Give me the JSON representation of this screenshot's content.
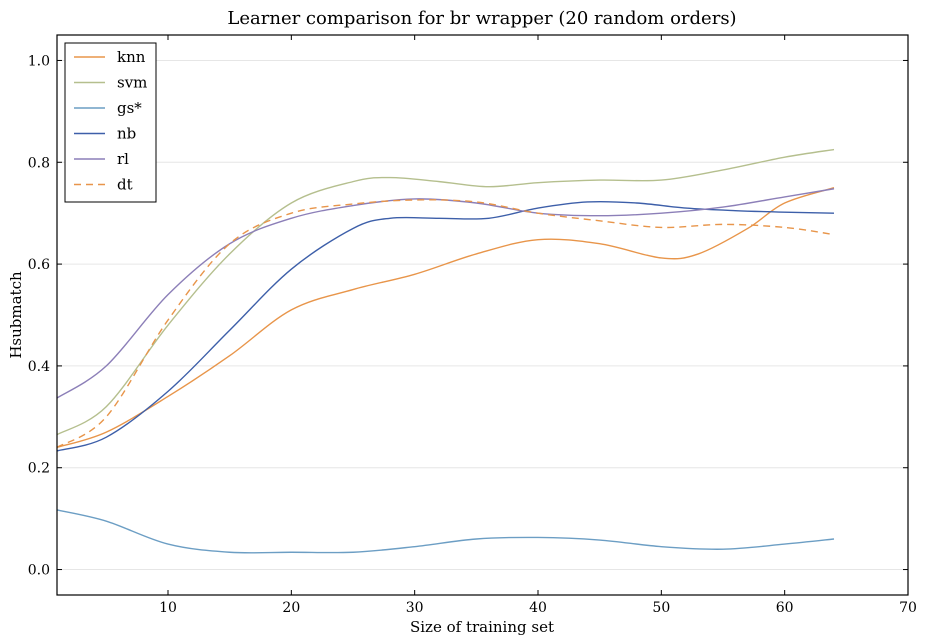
{
  "chart_data": {
    "type": "line",
    "title": "Learner comparison for br wrapper (20 random orders)",
    "xlabel": "Size of training set",
    "ylabel": "Hsubmatch",
    "xlim": [
      1,
      70
    ],
    "ylim": [
      -0.05,
      1.05
    ],
    "xticks": [
      10,
      20,
      30,
      40,
      50,
      60,
      70
    ],
    "yticks": [
      0.0,
      0.2,
      0.4,
      0.6,
      0.8,
      1.0
    ],
    "grid": "horizontal",
    "legend_position": "top-left",
    "series": [
      {
        "name": "knn",
        "color": "#e8954a",
        "dash": false,
        "x": [
          1,
          5,
          10,
          15,
          20,
          25,
          30,
          35,
          40,
          45,
          50,
          53,
          57,
          60,
          64
        ],
        "y": [
          0.24,
          0.27,
          0.34,
          0.42,
          0.51,
          0.55,
          0.58,
          0.62,
          0.648,
          0.64,
          0.612,
          0.62,
          0.67,
          0.72,
          0.75
        ]
      },
      {
        "name": "svm",
        "color": "#b5bf8e",
        "dash": false,
        "x": [
          1,
          5,
          10,
          15,
          20,
          25,
          28,
          32,
          36,
          40,
          45,
          50,
          55,
          60,
          64
        ],
        "y": [
          0.265,
          0.32,
          0.48,
          0.62,
          0.72,
          0.762,
          0.77,
          0.762,
          0.752,
          0.76,
          0.765,
          0.765,
          0.785,
          0.81,
          0.825
        ]
      },
      {
        "name": "gs*",
        "color": "#6c9ec4",
        "dash": false,
        "x": [
          1,
          5,
          10,
          15,
          20,
          25,
          30,
          35,
          40,
          45,
          50,
          55,
          60,
          64
        ],
        "y": [
          0.117,
          0.095,
          0.05,
          0.034,
          0.034,
          0.034,
          0.045,
          0.06,
          0.063,
          0.058,
          0.045,
          0.04,
          0.05,
          0.06
        ]
      },
      {
        "name": "nb",
        "color": "#3d5fa9",
        "dash": false,
        "x": [
          1,
          5,
          10,
          15,
          20,
          25,
          28,
          32,
          36,
          40,
          44,
          48,
          52,
          56,
          60,
          64
        ],
        "y": [
          0.233,
          0.26,
          0.35,
          0.47,
          0.59,
          0.67,
          0.69,
          0.69,
          0.69,
          0.71,
          0.722,
          0.72,
          0.71,
          0.705,
          0.702,
          0.7
        ]
      },
      {
        "name": "rl",
        "color": "#8c7fb8",
        "dash": false,
        "x": [
          1,
          5,
          10,
          15,
          20,
          25,
          30,
          35,
          40,
          45,
          50,
          55,
          60,
          64
        ],
        "y": [
          0.337,
          0.4,
          0.54,
          0.64,
          0.69,
          0.715,
          0.728,
          0.72,
          0.7,
          0.695,
          0.7,
          0.712,
          0.732,
          0.748
        ]
      },
      {
        "name": "dt",
        "color": "#e8954a",
        "dash": true,
        "x": [
          1,
          5,
          10,
          15,
          20,
          25,
          30,
          35,
          40,
          45,
          50,
          55,
          60,
          64
        ],
        "y": [
          0.24,
          0.3,
          0.49,
          0.64,
          0.7,
          0.718,
          0.726,
          0.722,
          0.7,
          0.685,
          0.672,
          0.678,
          0.672,
          0.658
        ]
      }
    ]
  }
}
